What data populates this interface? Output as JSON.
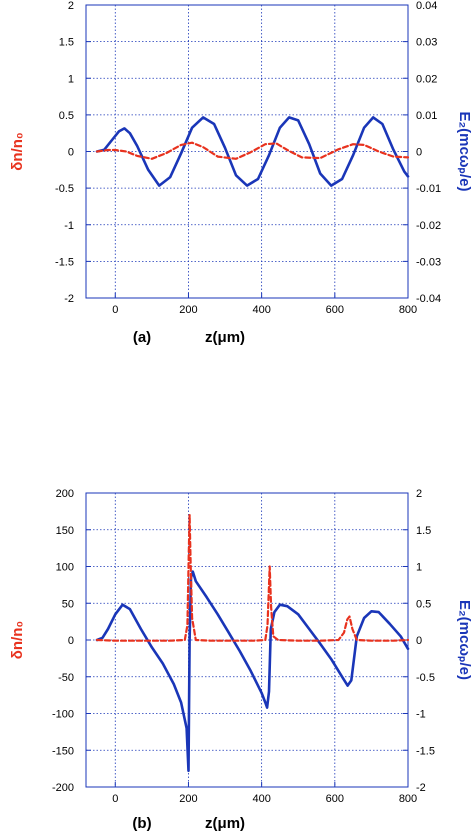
{
  "colors": {
    "ez_series": "#1a36b8",
    "density_series": "#e8321e",
    "grid": "#1a36b8",
    "axis": "#1a36b8"
  },
  "chart_data": [
    {
      "type": "line",
      "panel_label": "(a)",
      "xlabel": "z(μm)",
      "ylabel_left": "δn/n₀",
      "ylabel_right": "E₂(mcωₚ/e)",
      "xlim": [
        -80,
        800
      ],
      "ylim_left": [
        -2,
        2
      ],
      "ylim_right": [
        -0.04,
        0.04
      ],
      "x_ticks": [
        "0",
        "200",
        "400",
        "600",
        "800"
      ],
      "y_ticks_left": [
        "-2",
        "-1.5",
        "-1",
        "-0.5",
        "0",
        "0.5",
        "1",
        "1.5",
        "2"
      ],
      "y_ticks_right": [
        "-0.04",
        "-0.03",
        "-0.02",
        "-0.01",
        "0",
        "0.01",
        "0.02",
        "0.03",
        "0.04"
      ],
      "grid": true,
      "series": [
        {
          "axis": "right",
          "style": "solid",
          "x": [
            -50,
            -30,
            -10,
            10,
            25,
            40,
            60,
            90,
            120,
            150,
            180,
            210,
            240,
            270,
            300,
            330,
            360,
            390,
            420,
            450,
            475,
            500,
            530,
            560,
            590,
            620,
            650,
            680,
            705,
            730,
            760,
            790,
            800
          ],
          "y": [
            0,
            0.0005,
            0.003,
            0.0055,
            0.0063,
            0.005,
            0.0015,
            -0.005,
            -0.0093,
            -0.007,
            -0.0005,
            0.0065,
            0.0093,
            0.0075,
            0.001,
            -0.0065,
            -0.0093,
            -0.0075,
            -0.001,
            0.0065,
            0.0093,
            0.0085,
            0.002,
            -0.006,
            -0.0093,
            -0.0075,
            -0.001,
            0.0065,
            0.0093,
            0.0075,
            0.0005,
            -0.0055,
            -0.0068
          ]
        },
        {
          "axis": "left",
          "style": "dashed",
          "x": [
            -50,
            -20,
            0,
            30,
            60,
            100,
            140,
            180,
            210,
            240,
            280,
            330,
            370,
            410,
            440,
            470,
            510,
            560,
            610,
            650,
            680,
            720,
            760,
            800
          ],
          "y": [
            0,
            0.02,
            0.02,
            0.0,
            -0.06,
            -0.1,
            -0.02,
            0.09,
            0.12,
            0.06,
            -0.07,
            -0.1,
            -0.01,
            0.1,
            0.11,
            0.02,
            -0.08,
            -0.09,
            0.03,
            0.1,
            0.09,
            0.0,
            -0.07,
            -0.08
          ]
        }
      ]
    },
    {
      "type": "line",
      "panel_label": "(b)",
      "xlabel": "z(μm)",
      "ylabel_left": "δn/n₀",
      "ylabel_right": "E₂(mcωₚ/e)",
      "xlim": [
        -80,
        800
      ],
      "ylim_left": [
        -200,
        200
      ],
      "ylim_right": [
        -2,
        2
      ],
      "x_ticks": [
        "0",
        "200",
        "400",
        "600",
        "800"
      ],
      "y_ticks_left": [
        "-200",
        "-150",
        "-100",
        "-50",
        "0",
        "50",
        "100",
        "150",
        "200"
      ],
      "y_ticks_right": [
        "-2",
        "-1.5",
        "-1",
        "-0.5",
        "0",
        "0.5",
        "1",
        "1.5",
        "2"
      ],
      "grid": true,
      "series": [
        {
          "axis": "right",
          "style": "solid",
          "x": [
            -50,
            -35,
            -20,
            0,
            20,
            40,
            70,
            100,
            130,
            160,
            180,
            195,
            200,
            203,
            207,
            212,
            220,
            250,
            280,
            310,
            340,
            370,
            400,
            410,
            415,
            420,
            425,
            435,
            450,
            470,
            500,
            530,
            560,
            590,
            620,
            635,
            645,
            660,
            680,
            700,
            720,
            750,
            780,
            800
          ],
          "y": [
            0,
            0.03,
            0.15,
            0.35,
            0.48,
            0.42,
            0.15,
            -0.1,
            -0.32,
            -0.6,
            -0.85,
            -1.2,
            -1.78,
            0.0,
            0.85,
            0.93,
            0.8,
            0.58,
            0.35,
            0.1,
            -0.15,
            -0.42,
            -0.72,
            -0.85,
            -0.92,
            -0.7,
            0.15,
            0.38,
            0.48,
            0.46,
            0.35,
            0.15,
            -0.05,
            -0.26,
            -0.5,
            -0.62,
            -0.55,
            0.05,
            0.3,
            0.39,
            0.38,
            0.22,
            0.05,
            -0.12
          ]
        },
        {
          "axis": "left",
          "style": "dashed",
          "x": [
            -50,
            0,
            50,
            100,
            150,
            190,
            197,
            201,
            203,
            206,
            210,
            220,
            260,
            320,
            380,
            410,
            416,
            419,
            422,
            426,
            432,
            445,
            500,
            560,
            610,
            625,
            634,
            640,
            648,
            660,
            700,
            760,
            800
          ],
          "y": [
            0,
            -1,
            -1,
            -1,
            -1,
            0,
            20,
            120,
            170,
            100,
            30,
            0,
            -1,
            -1,
            -1,
            0,
            20,
            60,
            100,
            45,
            5,
            0,
            -1,
            -1,
            0,
            10,
            28,
            32,
            15,
            0,
            -1,
            -1,
            0
          ]
        }
      ]
    }
  ]
}
